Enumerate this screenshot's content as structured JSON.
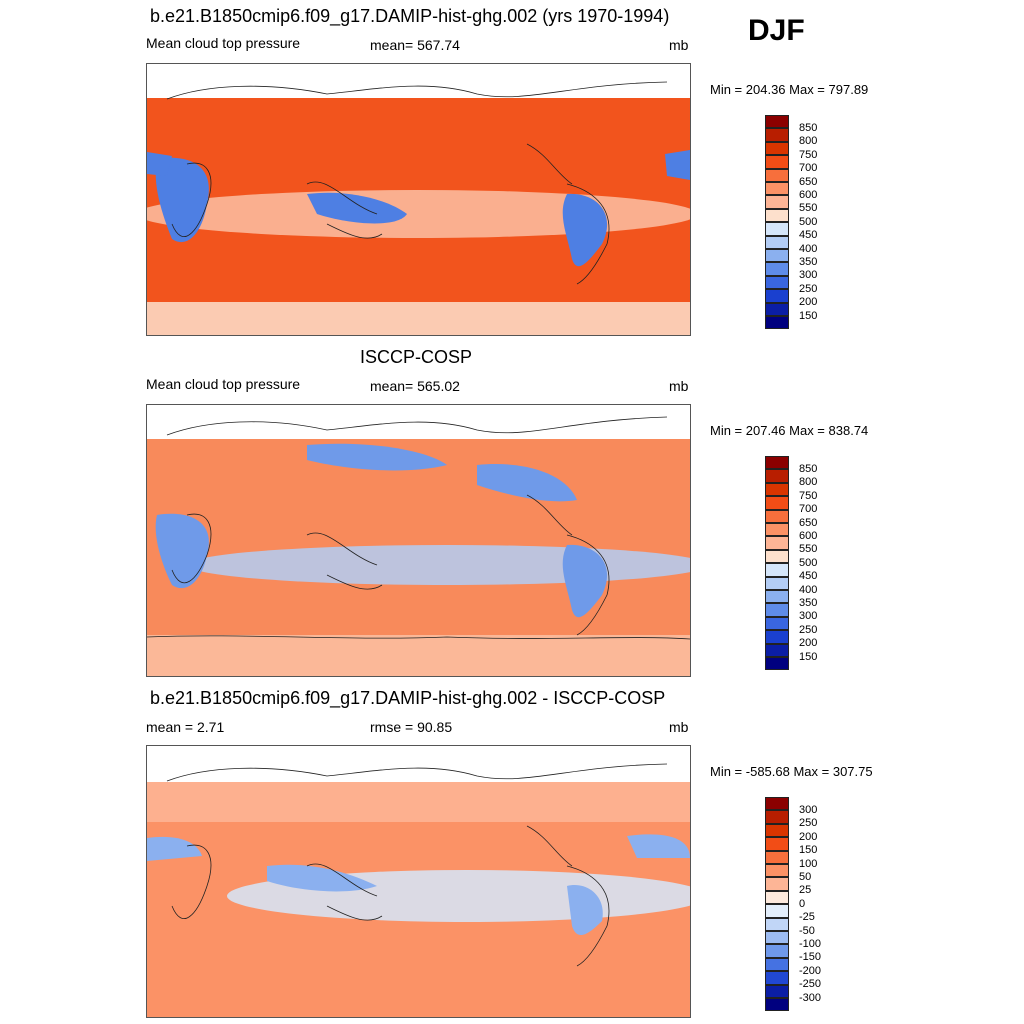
{
  "season": "DJF",
  "panels": [
    {
      "title": "b.e21.B1850cmip6.f09_g17.DAMIP-hist-ghg.002 (yrs 1970-1994)",
      "left": "Mean cloud top pressure",
      "center": "mean= 567.74",
      "units": "mb",
      "minmax": "Min = 204.36 Max = 797.89",
      "colorbar": {
        "labels": [
          "850",
          "800",
          "750",
          "700",
          "650",
          "600",
          "550",
          "500",
          "450",
          "400",
          "350",
          "300",
          "250",
          "200",
          "150"
        ],
        "colors": [
          "#8b0000",
          "#b81e00",
          "#d93500",
          "#f24d16",
          "#f76f3c",
          "#fb9266",
          "#fdb596",
          "#fde0cc",
          "#d5e6fa",
          "#b3cdf5",
          "#8bb0ef",
          "#5f8ce9",
          "#3a66e0",
          "#1a40cf",
          "#0b1ea5",
          "#00007f"
        ]
      },
      "map_fill": {
        "land": "#4e7fe3",
        "ocean": "#f2541d",
        "band": "#fbc0a3",
        "polar": "#fde0cc"
      }
    },
    {
      "title": "ISCCP-COSP",
      "left": "Mean cloud top pressure",
      "center": "mean= 565.02",
      "units": "mb",
      "minmax": "Min = 207.46 Max = 838.74",
      "colorbar": {
        "labels": [
          "850",
          "800",
          "750",
          "700",
          "650",
          "600",
          "550",
          "500",
          "450",
          "400",
          "350",
          "300",
          "250",
          "200",
          "150"
        ],
        "colors": [
          "#8b0000",
          "#b81e00",
          "#d93500",
          "#f24d16",
          "#f76f3c",
          "#fb9266",
          "#fdb596",
          "#fde0cc",
          "#d5e6fa",
          "#b3cdf5",
          "#8bb0ef",
          "#5f8ce9",
          "#3a66e0",
          "#1a40cf",
          "#0b1ea5",
          "#00007f"
        ]
      },
      "map_fill": {
        "land": "#6f9ae9",
        "ocean": "#f88a5b",
        "band": "#b3cdf5",
        "polar": "#fbc0a3"
      }
    },
    {
      "title": "b.e21.B1850cmip6.f09_g17.DAMIP-hist-ghg.002 - ISCCP-COSP",
      "left": "mean =   2.71",
      "center": "rmse =  90.85",
      "units": "mb",
      "minmax": "Min = -585.68 Max = 307.75",
      "colorbar": {
        "labels": [
          "300",
          "250",
          "200",
          "150",
          "100",
          "50",
          "25",
          "0",
          "-25",
          "-50",
          "-100",
          "-150",
          "-200",
          "-250",
          "-300"
        ],
        "colors": [
          "#8b0000",
          "#b81e00",
          "#d93500",
          "#f24d16",
          "#f76f3c",
          "#fb9266",
          "#fdb596",
          "#fde9dc",
          "#e3eefb",
          "#c1d6f7",
          "#9dbcf2",
          "#6f99eb",
          "#4572e2",
          "#2148d3",
          "#0b1ea5",
          "#00007f"
        ]
      },
      "map_fill": {
        "land": "#8bb0ef",
        "ocean": "#fb9266",
        "band": "#d5e6fa",
        "polar": "#fdb596"
      }
    }
  ]
}
